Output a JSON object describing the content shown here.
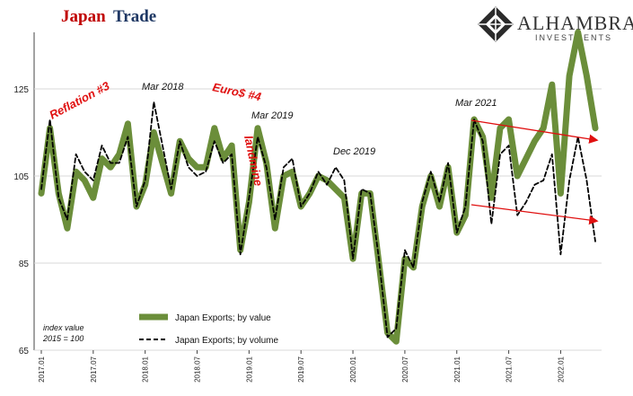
{
  "chart_data": {
    "type": "line",
    "title_part1": "Japan",
    "title_part2": "Trade",
    "brand": {
      "name": "ALHAMBRA",
      "sub": "INVESTMENTS"
    },
    "ylim": [
      65,
      138
    ],
    "yticks": [
      "65",
      "85",
      "105",
      "125"
    ],
    "ytick_values": [
      65,
      85,
      105,
      125
    ],
    "x_tick_labels": [
      "2017.01",
      "2017.07",
      "2018.01",
      "2018.07",
      "2019.01",
      "2019.07",
      "2020.01",
      "2020.07",
      "2021.01",
      "2021.07",
      "2022.01"
    ],
    "x_tick_index": [
      0,
      6,
      12,
      18,
      24,
      30,
      36,
      42,
      48,
      54,
      60
    ],
    "x": [
      "2017.01",
      "2017.02",
      "2017.03",
      "2017.04",
      "2017.05",
      "2017.06",
      "2017.07",
      "2017.08",
      "2017.09",
      "2017.10",
      "2017.11",
      "2017.12",
      "2018.01",
      "2018.02",
      "2018.03",
      "2018.04",
      "2018.05",
      "2018.06",
      "2018.07",
      "2018.08",
      "2018.09",
      "2018.10",
      "2018.11",
      "2018.12",
      "2019.01",
      "2019.02",
      "2019.03",
      "2019.04",
      "2019.05",
      "2019.06",
      "2019.07",
      "2019.08",
      "2019.09",
      "2019.10",
      "2019.11",
      "2019.12",
      "2020.01",
      "2020.02",
      "2020.03",
      "2020.04",
      "2020.05",
      "2020.06",
      "2020.07",
      "2020.08",
      "2020.09",
      "2020.10",
      "2020.11",
      "2020.12",
      "2021.01",
      "2021.02",
      "2021.03",
      "2021.04",
      "2021.05",
      "2021.06",
      "2021.07",
      "2021.08",
      "2021.09",
      "2021.10",
      "2021.11",
      "2021.12",
      "2022.01",
      "2022.02",
      "2022.03",
      "2022.04",
      "2022.05"
    ],
    "series": [
      {
        "name": "Japan Exports; by value",
        "color": "#6b8e3a",
        "style": "solid-thick",
        "values": [
          101,
          116,
          101,
          93,
          106,
          104,
          100,
          109,
          107,
          110,
          117,
          98,
          103,
          115,
          108,
          101,
          113,
          109,
          107,
          107,
          116,
          109,
          112,
          88,
          99,
          116,
          108,
          93,
          105,
          106,
          98,
          101,
          105,
          104,
          102,
          100,
          86,
          101,
          101,
          85,
          69,
          67,
          86,
          84,
          98,
          105,
          98,
          107,
          92,
          96,
          118,
          114,
          100,
          116,
          118,
          105,
          109,
          113,
          116,
          126,
          101,
          128,
          138,
          128,
          116
        ],
        "values_note": "read from chart"
      },
      {
        "name": "Japan Exports; by volume",
        "color": "#000000",
        "style": "dashed",
        "values": [
          102,
          118,
          100,
          95,
          110,
          106,
          104,
          112,
          108,
          108,
          114,
          98,
          104,
          122,
          112,
          102,
          113,
          107,
          105,
          106,
          113,
          108,
          110,
          87,
          100,
          114,
          107,
          95,
          107,
          109,
          98,
          101,
          106,
          103,
          107,
          104,
          86,
          102,
          101,
          86,
          68,
          70,
          88,
          84,
          99,
          106,
          99,
          108,
          92,
          98,
          118,
          113,
          94,
          110,
          112,
          96,
          99,
          103,
          104,
          110,
          87,
          104,
          114,
          104,
          90
        ]
      }
    ],
    "annotations": [
      {
        "text": "Mar 2018",
        "color": "black"
      },
      {
        "text": "Mar 2019",
        "color": "black"
      },
      {
        "text": "Dec 2019",
        "color": "black"
      },
      {
        "text": "Mar 2021",
        "color": "black"
      },
      {
        "text": "Reflation #3",
        "color": "red"
      },
      {
        "text": "Euro$ #4",
        "color": "red"
      },
      {
        "text": "landmine",
        "color": "red"
      }
    ],
    "note_line1": "index value",
    "note_line2": "2015 = 100",
    "grid": true,
    "legend_position": "bottom-left"
  }
}
